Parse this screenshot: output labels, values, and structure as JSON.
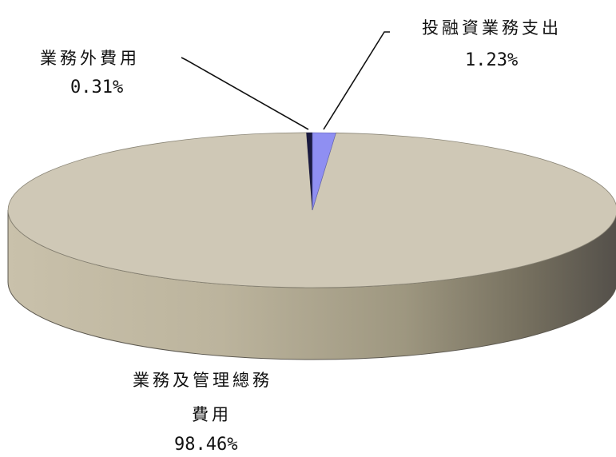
{
  "chart_data": {
    "type": "pie",
    "style": "3d",
    "legend": "none",
    "slices": [
      {
        "name": "業務及管理總務費用",
        "label_lines": [
          "業務及管理總務",
          "費用"
        ],
        "value": 98.46,
        "percent_label": "98.46%",
        "color": "#cfc8b6"
      },
      {
        "name": "業務外費用",
        "label_lines": [
          "業務外費用"
        ],
        "value": 0.31,
        "percent_label": "0.31%",
        "color": "#1a1a40"
      },
      {
        "name": "投融資業務支出",
        "label_lines": [
          "投融資業務支出"
        ],
        "value": 1.23,
        "percent_label": "1.23%",
        "color": "#8f8ff2"
      }
    ]
  }
}
